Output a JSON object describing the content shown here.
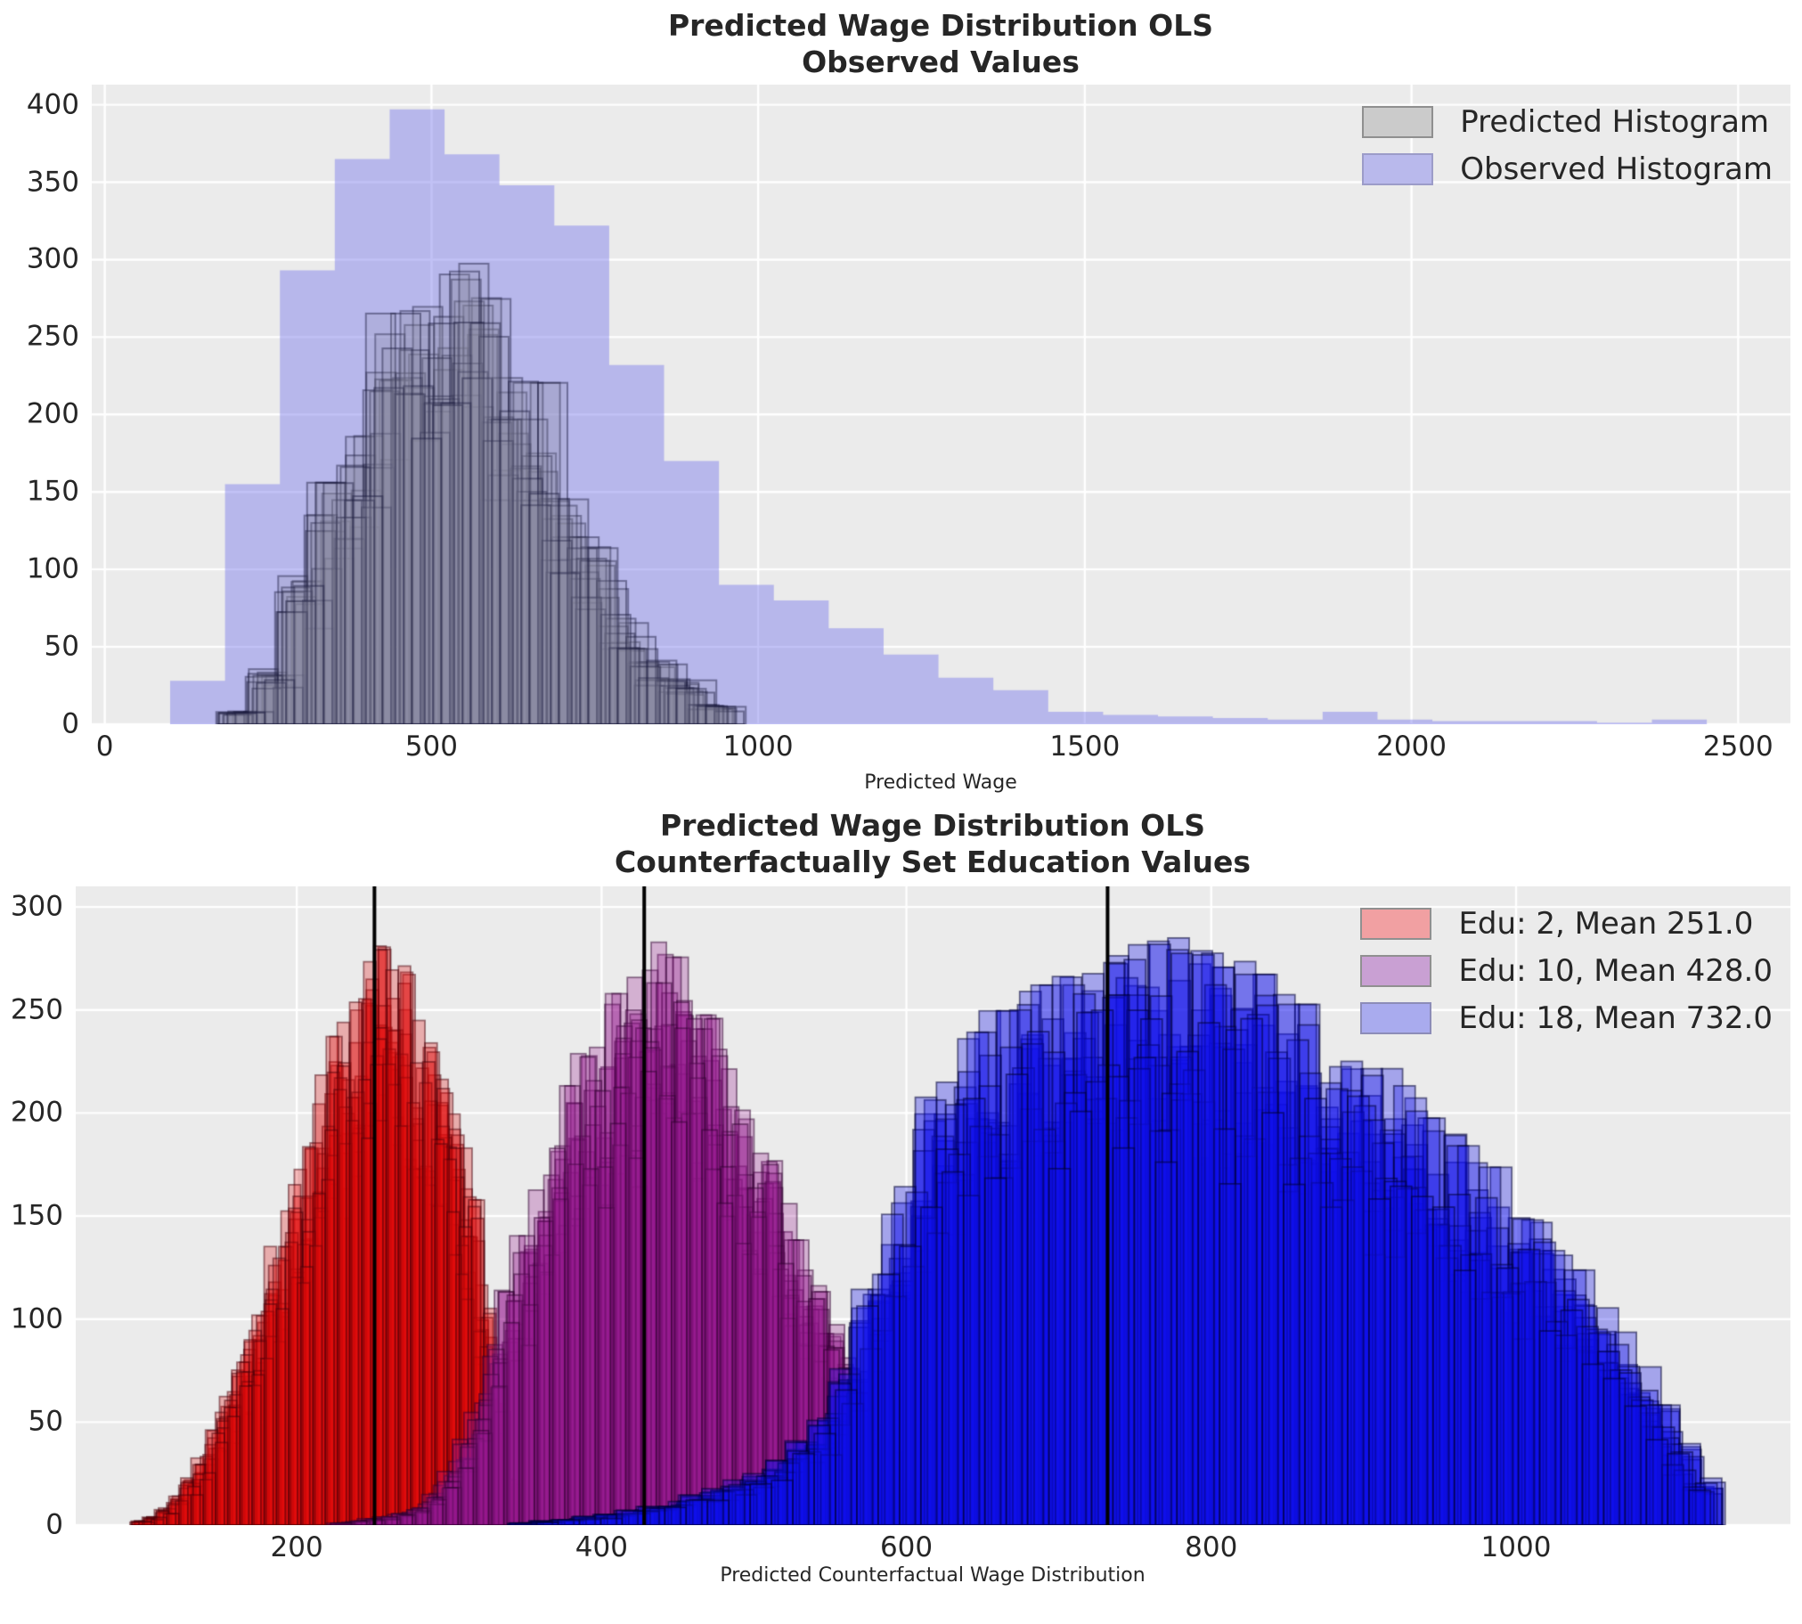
{
  "figure": {
    "background": "#ffffff",
    "axes_background": "#ebebeb",
    "grid_color": "#ffffff",
    "text_color": "#262626",
    "mean_line_color": "#000000"
  },
  "chart_data": [
    {
      "id": "top",
      "type": "bar",
      "title": "Predicted Wage Distribution OLS",
      "subtitle": "Observed Values",
      "xlabel": "Predicted Wage",
      "ylabel": "",
      "xlim": [
        -20,
        2580
      ],
      "ylim": [
        0,
        413
      ],
      "xticks": [
        0,
        500,
        1000,
        1500,
        2000,
        2500
      ],
      "yticks": [
        0,
        50,
        100,
        150,
        200,
        250,
        300,
        350,
        400
      ],
      "grid": true,
      "legend_position": "upper right",
      "series": [
        {
          "name": "Observed Histogram",
          "kind": "single",
          "bin_start": 100,
          "bin_width": 84,
          "counts": [
            28,
            155,
            293,
            365,
            397,
            368,
            348,
            322,
            232,
            170,
            90,
            80,
            62,
            45,
            30,
            22,
            8,
            6,
            5,
            4,
            3,
            8,
            3,
            2,
            2,
            2,
            1,
            3
          ],
          "fill": "rgba(120,120,235,0.45)",
          "legend_fill": "#b9b9ec",
          "legend_edge": "#9c9cc8"
        },
        {
          "name": "Predicted Histogram",
          "kind": "bootstrap",
          "replicates": 15,
          "seed": 11,
          "bin_start": 195,
          "bin_width": 45,
          "counts": [
            8,
            35,
            92,
            150,
            185,
            255,
            265,
            290,
            296,
            215,
            212,
            140,
            110,
            68,
            40,
            28,
            12
          ],
          "fill": "rgba(140,140,160,0.18)",
          "stroke": "rgba(25,25,60,0.45)",
          "line_width": 2,
          "legend_fill": "#cbcbcb",
          "legend_edge": "#8f8f8f"
        }
      ]
    },
    {
      "id": "bottom",
      "type": "bar",
      "title": "Predicted Wage Distribution OLS",
      "subtitle": "Counterfactually Set Education Values",
      "xlabel": "Predicted Counterfactual Wage Distribution",
      "ylabel": "",
      "xlim": [
        55,
        1180
      ],
      "ylim": [
        0,
        310
      ],
      "xticks": [
        200,
        400,
        600,
        800,
        1000
      ],
      "yticks": [
        0,
        50,
        100,
        150,
        200,
        250,
        300
      ],
      "grid": true,
      "legend_position": "upper right",
      "mean_lines": [
        251,
        428,
        732
      ],
      "series": [
        {
          "name": "Edu: 2, Mean 251.0",
          "education": 2,
          "mean": 251.0,
          "kind": "bootstrap",
          "replicates": 13,
          "seed": 21,
          "bin_start": 95,
          "bin_width": 8,
          "counts": [
            2,
            4,
            8,
            14,
            22,
            32,
            45,
            60,
            76,
            92,
            110,
            130,
            150,
            170,
            190,
            210,
            228,
            244,
            258,
            270,
            278,
            272,
            258,
            242,
            225,
            208,
            190,
            158,
            112,
            62,
            22
          ],
          "fill": "rgba(225,10,10,0.28)",
          "stroke": "rgba(70,0,10,0.5)",
          "line_width": 1.8,
          "legend_fill": "#f1a0a2",
          "legend_edge": "#909090"
        },
        {
          "name": "Edu: 10, Mean 428.0",
          "education": 10,
          "mean": 428.0,
          "kind": "bootstrap",
          "replicates": 13,
          "seed": 31,
          "bin_start": 225,
          "bin_width": 10,
          "counts": [
            1,
            2,
            3,
            4,
            6,
            8,
            15,
            25,
            40,
            60,
            85,
            110,
            135,
            160,
            185,
            205,
            220,
            235,
            248,
            258,
            268,
            272,
            265,
            252,
            238,
            222,
            205,
            188,
            170,
            152,
            133,
            114,
            96,
            78,
            62,
            47,
            34,
            23,
            14,
            8,
            4
          ],
          "fill": "rgba(150,25,145,0.28)",
          "stroke": "rgba(45,0,45,0.5)",
          "line_width": 1.8,
          "legend_fill": "#c9a0d3",
          "legend_edge": "#909090"
        },
        {
          "name": "Edu: 18, Mean 732.0",
          "education": 18,
          "mean": 732.0,
          "kind": "bootstrap",
          "replicates": 14,
          "seed": 41,
          "bin_start": 346,
          "bin_width": 14,
          "counts": [
            1,
            2,
            3,
            4,
            5,
            7,
            9,
            11,
            14,
            17,
            21,
            26,
            32,
            40,
            52,
            75,
            110,
            145,
            175,
            200,
            218,
            230,
            240,
            247,
            252,
            256,
            260,
            264,
            268,
            271,
            274,
            272,
            268,
            263,
            257,
            250,
            243,
            236,
            229,
            221,
            213,
            205,
            196,
            187,
            177,
            167,
            156,
            144,
            132,
            119,
            105,
            90,
            74,
            56,
            38,
            22
          ],
          "fill": "rgba(15,15,235,0.32)",
          "stroke": "rgba(0,0,50,0.55)",
          "line_width": 1.8,
          "legend_fill": "#a9abee",
          "legend_edge": "#8c8cb8"
        }
      ]
    }
  ]
}
